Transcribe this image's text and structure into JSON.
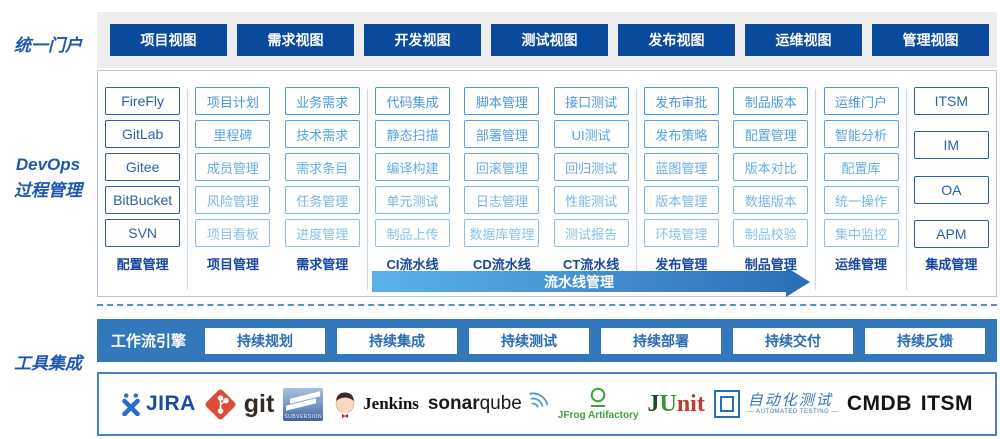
{
  "left_labels": {
    "portal": "统一门户",
    "devops_line1": "DevOps",
    "devops_line2": "过程管理",
    "tools": "工具集成"
  },
  "portal_views": [
    "项目视图",
    "需求视图",
    "开发视图",
    "测试视图",
    "发布视图",
    "运维视图",
    "管理视图"
  ],
  "process": {
    "pipeline_arrow_label": "流水线管理",
    "columns": [
      {
        "label": "配置管理",
        "style": "dark",
        "sep_before": false,
        "items": [
          "FireFly",
          "GitLab",
          "Gitee",
          "BitBucket",
          "SVN"
        ]
      },
      {
        "label": "项目管理",
        "style": "light",
        "sep_before": true,
        "items": [
          "项目计划",
          "里程碑",
          "成员管理",
          "风险管理",
          "项目看板"
        ]
      },
      {
        "label": "需求管理",
        "style": "light",
        "sep_before": false,
        "items": [
          "业务需求",
          "技术需求",
          "需求条目",
          "任务管理",
          "进度管理"
        ]
      },
      {
        "label": "CI流水线",
        "style": "light",
        "sep_before": true,
        "items": [
          "代码集成",
          "静态扫描",
          "编译构建",
          "单元测试",
          "制品上传"
        ]
      },
      {
        "label": "CD流水线",
        "style": "light",
        "sep_before": false,
        "items": [
          "脚本管理",
          "部署管理",
          "回滚管理",
          "日志管理",
          "数据库管理"
        ]
      },
      {
        "label": "CT流水线",
        "style": "light",
        "sep_before": false,
        "items": [
          "接口测试",
          "UI测试",
          "回归测试",
          "性能测试",
          "测试报告"
        ]
      },
      {
        "label": "发布管理",
        "style": "light",
        "sep_before": true,
        "items": [
          "发布审批",
          "发布策略",
          "蓝图管理",
          "版本管理",
          "环境管理"
        ]
      },
      {
        "label": "制品管理",
        "style": "light",
        "sep_before": false,
        "items": [
          "制品版本",
          "配置管理",
          "版本对比",
          "数据版本",
          "制品校验"
        ]
      },
      {
        "label": "运维管理",
        "style": "light",
        "sep_before": true,
        "items": [
          "运维门户",
          "智能分析",
          "配置库",
          "统一操作",
          "集中监控"
        ]
      },
      {
        "label": "集成管理",
        "style": "dark",
        "sep_before": true,
        "items": [
          "ITSM",
          "IM",
          "OA",
          "APM"
        ]
      }
    ]
  },
  "workflow": {
    "engine_label": "工作流引擎",
    "stages": [
      "持续规划",
      "持续集成",
      "持续测试",
      "持续部署",
      "持续交付",
      "持续反馈"
    ]
  },
  "logos": {
    "jira": {
      "label": "JIRA"
    },
    "git": {
      "label": "git"
    },
    "subversion": {
      "label": "SUBVERSION"
    },
    "jenkins": {
      "label": "Jenkins"
    },
    "sonarqube": {
      "bold": "sonar",
      "rest": "qube"
    },
    "jfrog": {
      "label": "JFrog Artifactory"
    },
    "junit": {
      "j": "J",
      "u": "U",
      "nit": "nit"
    },
    "autotest": {
      "label": "自动化测试",
      "sub": "— AUTOMATED TESTING —"
    },
    "cmdb": {
      "label": "CMDB"
    },
    "itsm": {
      "label": "ITSM"
    }
  },
  "colors": {
    "portal_button": "#0a4a9c",
    "workflow_band": "#3478bc",
    "dark_box": "#2d5fa8",
    "box_rows": [
      "#4a97de",
      "#58a2e2",
      "#68ace5",
      "#78b6e8",
      "#8ac0eb"
    ],
    "group_label": "#17479e",
    "arrow_start": "#5cb2e8",
    "arrow_end": "#2d72b8",
    "dashed_line": "#4a90d2",
    "side_label": "#1d57b0"
  }
}
